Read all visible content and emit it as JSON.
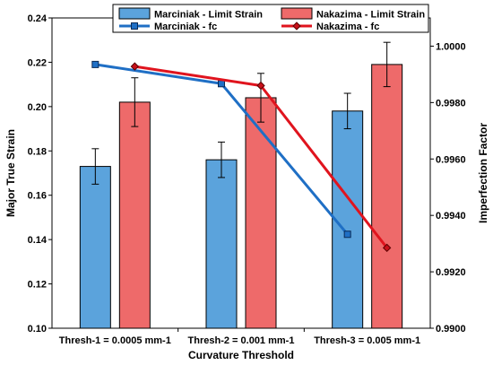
{
  "chart_data": {
    "type": "bar",
    "title": "",
    "xlabel": "Curvature Threshold",
    "ylabel": "Major True Strain",
    "y2label": "Imperfection Factor",
    "categories": [
      "Thresh-1 = 0.0005 mm-1",
      "Thresh-2 = 0.001 mm-1",
      "Thresh-3 = 0.005 mm-1"
    ],
    "ylim": [
      0.1,
      0.24
    ],
    "yticks": [
      "0.10",
      "0.12",
      "0.14",
      "0.16",
      "0.18",
      "0.20",
      "0.22",
      "0.24"
    ],
    "y2lim": [
      0.99,
      1.001
    ],
    "y2ticks": [
      "0.9900",
      "0.9920",
      "0.9940",
      "0.9960",
      "0.9980",
      "1.0000"
    ],
    "legend_position": "top",
    "grid": false,
    "bar_series": [
      {
        "name": "Marciniak - Limit Strain",
        "values": [
          0.173,
          0.176,
          0.198
        ],
        "errors": [
          0.008,
          0.008,
          0.008
        ],
        "color": "#5BA3DC"
      },
      {
        "name": "Nakazima - Limit Strain",
        "values": [
          0.202,
          0.204,
          0.219
        ],
        "errors": [
          0.011,
          0.011,
          0.01
        ],
        "color": "#EE6A6A"
      }
    ],
    "line_series": [
      {
        "name": "Marciniak - fc",
        "values": [
          0.99935,
          0.99867,
          0.99333
        ],
        "axis": "right",
        "color": "#1F6FC5",
        "marker": "square"
      },
      {
        "name": "Nakazima - fc",
        "values": [
          0.99928,
          0.9986,
          0.99285
        ],
        "axis": "right",
        "color": "#E0141E",
        "marker": "diamond"
      }
    ]
  }
}
